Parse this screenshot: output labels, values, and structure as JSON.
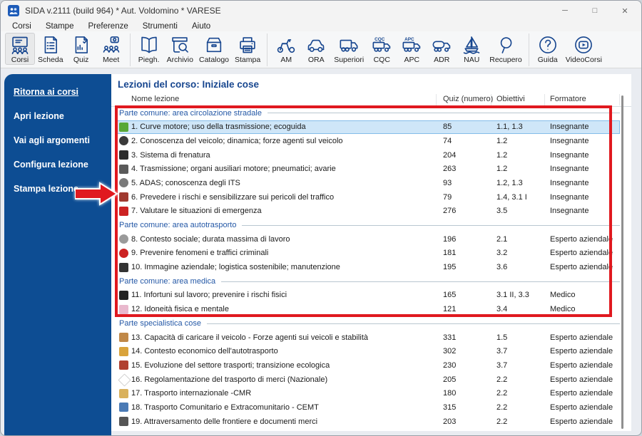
{
  "window": {
    "title": "SIDA v.2111 (build 964) * Aut. Voldomino * VARESE",
    "controls": [
      "minimize",
      "maximize",
      "close"
    ]
  },
  "colors": {
    "icon_blue": "#17468f",
    "sidebar_blue": "#0d4d93",
    "section_blue": "#2458a6",
    "selection_bg": "#cfe6f8",
    "selection_border": "#84bce9",
    "annotation_red": "#e0191f"
  },
  "menu": {
    "items": [
      "Corsi",
      "Stampe",
      "Preferenze",
      "Strumenti",
      "Aiuto"
    ]
  },
  "toolbar": {
    "groups": [
      {
        "buttons": [
          {
            "label": "Corsi",
            "icon": "course-presentation",
            "selected": true
          },
          {
            "label": "Scheda",
            "icon": "document-checklist",
            "selected": false
          },
          {
            "label": "Quiz",
            "icon": "quiz-chart",
            "selected": false
          },
          {
            "label": "Meet",
            "icon": "video-meeting",
            "selected": false
          }
        ]
      },
      {
        "buttons": [
          {
            "label": "Piegh.",
            "icon": "open-book",
            "selected": false
          },
          {
            "label": "Archivio",
            "icon": "archive-search",
            "selected": false
          },
          {
            "label": "Catalogo",
            "icon": "card-catalog",
            "selected": false
          },
          {
            "label": "Stampa",
            "icon": "printer",
            "selected": false
          }
        ]
      },
      {
        "buttons": [
          {
            "label": "AM",
            "icon": "moped",
            "selected": false
          },
          {
            "label": "ORA",
            "icon": "car",
            "selected": false
          },
          {
            "label": "Superiori",
            "icon": "truck",
            "selected": false
          },
          {
            "label": "CQC",
            "icon": "truck-cqc",
            "selected": false
          },
          {
            "label": "APC",
            "icon": "truck-apc",
            "selected": false
          },
          {
            "label": "ADR",
            "icon": "tanker-truck",
            "selected": false
          },
          {
            "label": "NAU",
            "icon": "sailboat",
            "selected": false
          },
          {
            "label": "Recupero",
            "icon": "magnifier",
            "selected": false
          }
        ]
      },
      {
        "buttons": [
          {
            "label": "Guida",
            "icon": "question-circle",
            "selected": false
          },
          {
            "label": "VideoCorsi",
            "icon": "play-circle",
            "selected": false
          }
        ]
      }
    ]
  },
  "sidebar": {
    "items": [
      {
        "label": "Ritorna ai corsi",
        "underlined": true
      },
      {
        "label": "Apri lezione",
        "underlined": false
      },
      {
        "label": "Vai agli argomenti",
        "underlined": false
      },
      {
        "label": "Configura lezione",
        "underlined": false
      },
      {
        "label": "Stampa lezione",
        "underlined": false
      }
    ]
  },
  "main": {
    "title": "Lezioni del corso: Iniziale cose",
    "table": {
      "headers": [
        "Nome lezione",
        "Quiz (numero)",
        "Obiettivi",
        "Formatore"
      ],
      "sections": [
        {
          "label": "Parte comune: area circolazione stradale",
          "rows": [
            {
              "name": "1. Curve motore; uso della trasmissione; ecoguida",
              "quiz": "85",
              "obiettivi": "1.1, 1.3",
              "formatore": "Insegnante",
              "selected": true,
              "icon": "ecodrive",
              "icon_color": "#58a838",
              "shape": "square"
            },
            {
              "name": "2. Conoscenza del veicolo; dinamica; forze agenti sul veicolo",
              "quiz": "74",
              "obiettivi": "1.2",
              "formatore": "Insegnante",
              "selected": false,
              "icon": "steering-wheel",
              "icon_color": "#3a3a3a",
              "shape": "circle"
            },
            {
              "name": "3. Sistema di frenatura",
              "quiz": "204",
              "obiettivi": "1.2",
              "formatore": "Insegnante",
              "selected": false,
              "icon": "traffic-light",
              "icon_color": "#2b2b2b",
              "shape": "square"
            },
            {
              "name": "4. Trasmissione; organi ausiliari motore; pneumatici; avarie",
              "quiz": "263",
              "obiettivi": "1.2",
              "formatore": "Insegnante",
              "selected": false,
              "icon": "transmission",
              "icon_color": "#5a5a5a",
              "shape": "square"
            },
            {
              "name": "5. ADAS; conoscenza degli ITS",
              "quiz": "93",
              "obiettivi": "1.2, 1.3",
              "formatore": "Insegnante",
              "selected": false,
              "icon": "adas-wheel",
              "icon_color": "#7a7a7a",
              "shape": "circle"
            },
            {
              "name": "6. Prevedere i rischi e sensibilizzare sui pericoli del traffico",
              "quiz": "79",
              "obiettivi": "1.4, 3.1 I",
              "formatore": "Insegnante",
              "selected": false,
              "icon": "hazard-car",
              "icon_color": "#a03a30",
              "shape": "square"
            },
            {
              "name": "7. Valutare le situazioni di emergenza",
              "quiz": "276",
              "obiettivi": "3.5",
              "formatore": "Insegnante",
              "selected": false,
              "icon": "emergency",
              "icon_color": "#cc2222",
              "shape": "square"
            }
          ]
        },
        {
          "label": "Parte comune: area autotrasporto",
          "rows": [
            {
              "name": "8. Contesto sociale; durata massima di lavoro",
              "quiz": "196",
              "obiettivi": "2.1",
              "formatore": "Esperto aziendale",
              "selected": false,
              "icon": "clock",
              "icon_color": "#9a9a9a",
              "shape": "circle"
            },
            {
              "name": "9. Prevenire fenomeni e traffici criminali",
              "quiz": "181",
              "obiettivi": "3.2",
              "formatore": "Esperto aziendale",
              "selected": false,
              "icon": "prohibition",
              "icon_color": "#cc2222",
              "shape": "circle"
            },
            {
              "name": "10. Immagine aziendale; logistica sostenibile; manutenzione",
              "quiz": "195",
              "obiettivi": "3.6",
              "formatore": "Esperto aziendale",
              "selected": false,
              "icon": "company-care",
              "icon_color": "#333333",
              "shape": "square"
            }
          ]
        },
        {
          "label": "Parte comune: area medica",
          "rows": [
            {
              "name": "11. Infortuni sul lavoro; prevenire i rischi fisici",
              "quiz": "165",
              "obiettivi": "3.1 II, 3.3",
              "formatore": "Medico",
              "selected": false,
              "icon": "injury",
              "icon_color": "#222222",
              "shape": "square"
            },
            {
              "name": "12. Idoneità fisica e mentale",
              "quiz": "121",
              "obiettivi": "3.4",
              "formatore": "Medico",
              "selected": false,
              "icon": "health",
              "icon_color": "#e9b8cd",
              "shape": "square"
            }
          ]
        },
        {
          "label": "Parte specialistica cose",
          "rows": [
            {
              "name": "13. Capacità di caricare il veicolo - Forze agenti sui veicoli e stabilità",
              "quiz": "331",
              "obiettivi": "1.5",
              "formatore": "Esperto aziendale",
              "selected": false,
              "icon": "cargo-box",
              "icon_color": "#c08848",
              "shape": "square"
            },
            {
              "name": "14. Contesto economico dell'autotrasporto",
              "quiz": "302",
              "obiettivi": "3.7",
              "formatore": "Esperto aziendale",
              "selected": false,
              "icon": "economy",
              "icon_color": "#d9a33c",
              "shape": "square"
            },
            {
              "name": "15. Evoluzione del settore trasporti; transizione ecologica",
              "quiz": "230",
              "obiettivi": "3.7",
              "formatore": "Esperto aziendale",
              "selected": false,
              "icon": "ecology-pen",
              "icon_color": "#b04030",
              "shape": "square"
            },
            {
              "name": "16. Regolamentazione del trasporto di merci (Nazionale)",
              "quiz": "205",
              "obiettivi": "2.2",
              "formatore": "Esperto aziendale",
              "selected": false,
              "icon": "regulation-diamond",
              "icon_color": "#c9c9c9",
              "shape": "diamond"
            },
            {
              "name": "17. Trasporto internazionale -CMR",
              "quiz": "180",
              "obiettivi": "2.2",
              "formatore": "Esperto aziendale",
              "selected": false,
              "icon": "money-bag",
              "icon_color": "#d9b15c",
              "shape": "square"
            },
            {
              "name": "18. Trasporto Comunitario e Extracomunitario - CEMT",
              "quiz": "315",
              "obiettivi": "2.2",
              "formatore": "Esperto aziendale",
              "selected": false,
              "icon": "document-stack",
              "icon_color": "#4a7ab5",
              "shape": "square"
            },
            {
              "name": "19. Attraversamento delle frontiere e documenti merci",
              "quiz": "203",
              "obiettivi": "2.2",
              "formatore": "Esperto aziendale",
              "selected": false,
              "icon": "border-crossing",
              "icon_color": "#555555",
              "shape": "square"
            }
          ]
        }
      ]
    }
  },
  "annotations": {
    "rectangle_color": "#e0191f",
    "arrow_color": "#e0191f"
  }
}
